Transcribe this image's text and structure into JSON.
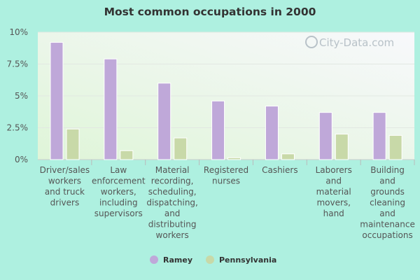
{
  "title": "Most common occupations in 2000",
  "watermark": "City-Data.com",
  "chart_data": {
    "type": "bar",
    "title": "Most common occupations in 2000",
    "categories": [
      [
        "Driver/sales",
        "workers",
        "and truck",
        "drivers"
      ],
      [
        "Law",
        "enforcement",
        "workers,",
        "including",
        "supervisors"
      ],
      [
        "Material",
        "recording,",
        "scheduling,",
        "dispatching,",
        "and",
        "distributing",
        "workers"
      ],
      [
        "Registered",
        "nurses"
      ],
      [
        "Cashiers"
      ],
      [
        "Laborers",
        "and",
        "material",
        "movers,",
        "hand"
      ],
      [
        "Building",
        "and",
        "grounds",
        "cleaning",
        "and",
        "maintenance",
        "occupations"
      ]
    ],
    "series": [
      {
        "name": "Ramey",
        "color": "#bfa8d9",
        "values": [
          9.2,
          7.9,
          6.0,
          4.6,
          4.2,
          3.7,
          3.7
        ]
      },
      {
        "name": "Pennsylvania",
        "color": "#c8d9a8",
        "values": [
          2.4,
          0.7,
          1.7,
          0.15,
          0.45,
          2.0,
          1.9
        ]
      }
    ],
    "ylim": [
      0,
      10
    ],
    "yticks": [
      "0%",
      "2.5%",
      "5%",
      "7.5%",
      "10%"
    ],
    "ytick_values": [
      0,
      2.5,
      5,
      7.5,
      10
    ],
    "legend_position": "bottom",
    "grid": true
  }
}
